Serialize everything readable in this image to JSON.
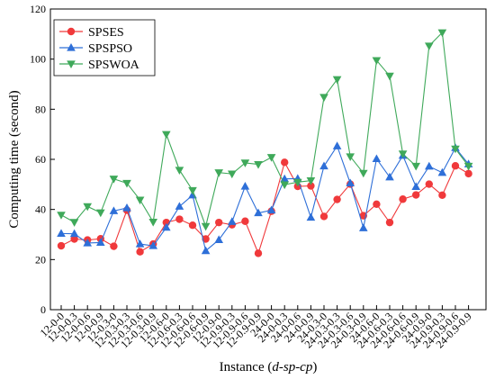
{
  "chart_data": {
    "type": "line",
    "xlabel_main": "Instance (",
    "xlabel_italic": "d-sp-cp",
    "xlabel_close": ")",
    "ylabel": "Computing time (second)",
    "ylim": [
      0,
      120
    ],
    "yticks": [
      0,
      20,
      40,
      60,
      80,
      100,
      120
    ],
    "legend_position": "top-left",
    "categories": [
      "12-0-0",
      "12-0-0.3",
      "12-0-0.6",
      "12-0-0.9",
      "12-0.3-0",
      "12-0.3-0.3",
      "12-0.3-0.6",
      "12-0.3-0.9",
      "12-0.6-0",
      "12-0.6-0.3",
      "12-0.6-0.6",
      "12-0.6-0.9",
      "12-0.9-0",
      "12-0.9-0.3",
      "12-0.9-0.6",
      "12-0.9-0.9",
      "24-0-0",
      "24-0-0.3",
      "24-0-0.6",
      "24-0-0.9",
      "24-0.3-0",
      "24-0.3-0.3",
      "24-0.3-0.6",
      "24-0.3-0.9",
      "24-0.6-0",
      "24-0.6-0.3",
      "24-0.6-0.6",
      "24-0.6-0.9",
      "24-0.9-0",
      "24-0.9-0.3",
      "24-0.9-0.6",
      "24-0.9-0.9"
    ],
    "series": [
      {
        "name": "SPSES",
        "color": "#f0393b",
        "marker": "circle",
        "values": [
          25.5,
          28.2,
          27.8,
          28.3,
          25.3,
          39.7,
          23.1,
          26.2,
          34.8,
          36.1,
          33.7,
          28.2,
          34.8,
          33.9,
          35.3,
          22.5,
          39.3,
          58.8,
          49.2,
          49.4,
          37.2,
          44.0,
          50.1,
          37.5,
          42.1,
          34.8,
          44.1,
          45.8,
          50.1,
          45.7,
          57.4,
          54.3
        ]
      },
      {
        "name": "SPSPSO",
        "color": "#2e6fd8",
        "marker": "triangle-up",
        "values": [
          30.4,
          30.3,
          26.6,
          26.8,
          39.4,
          40.6,
          26.2,
          25.5,
          32.8,
          41.2,
          45.7,
          23.5,
          27.9,
          35.1,
          49.2,
          38.6,
          39.7,
          52.2,
          52.3,
          36.8,
          57.3,
          65.3,
          50.5,
          32.6,
          60.2,
          52.9,
          61.5,
          49.1,
          57.2,
          54.7,
          64.6,
          58.1
        ]
      },
      {
        "name": "SPSWOA",
        "color": "#3fa95a",
        "marker": "triangle-down",
        "values": [
          37.8,
          34.9,
          41.2,
          38.7,
          52.2,
          50.5,
          43.8,
          35.0,
          70.0,
          55.7,
          47.6,
          33.3,
          54.7,
          54.2,
          58.6,
          58.0,
          60.8,
          49.9,
          50.9,
          51.5,
          84.8,
          91.9,
          61.1,
          54.5,
          99.5,
          93.3,
          62.2,
          57.3,
          105.3,
          110.6,
          64.2,
          57.3
        ]
      }
    ]
  }
}
